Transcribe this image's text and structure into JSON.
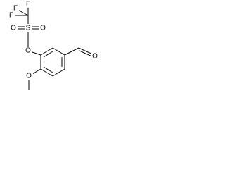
{
  "atoms": [
    {
      "label": "F"
    },
    {
      "label": "F"
    },
    {
      "label": "F"
    },
    {
      "label": "S"
    },
    {
      "label": "O"
    },
    {
      "label": "O"
    },
    {
      "label": "O"
    },
    {
      "label": "O"
    },
    {
      "label": "O"
    }
  ]
}
